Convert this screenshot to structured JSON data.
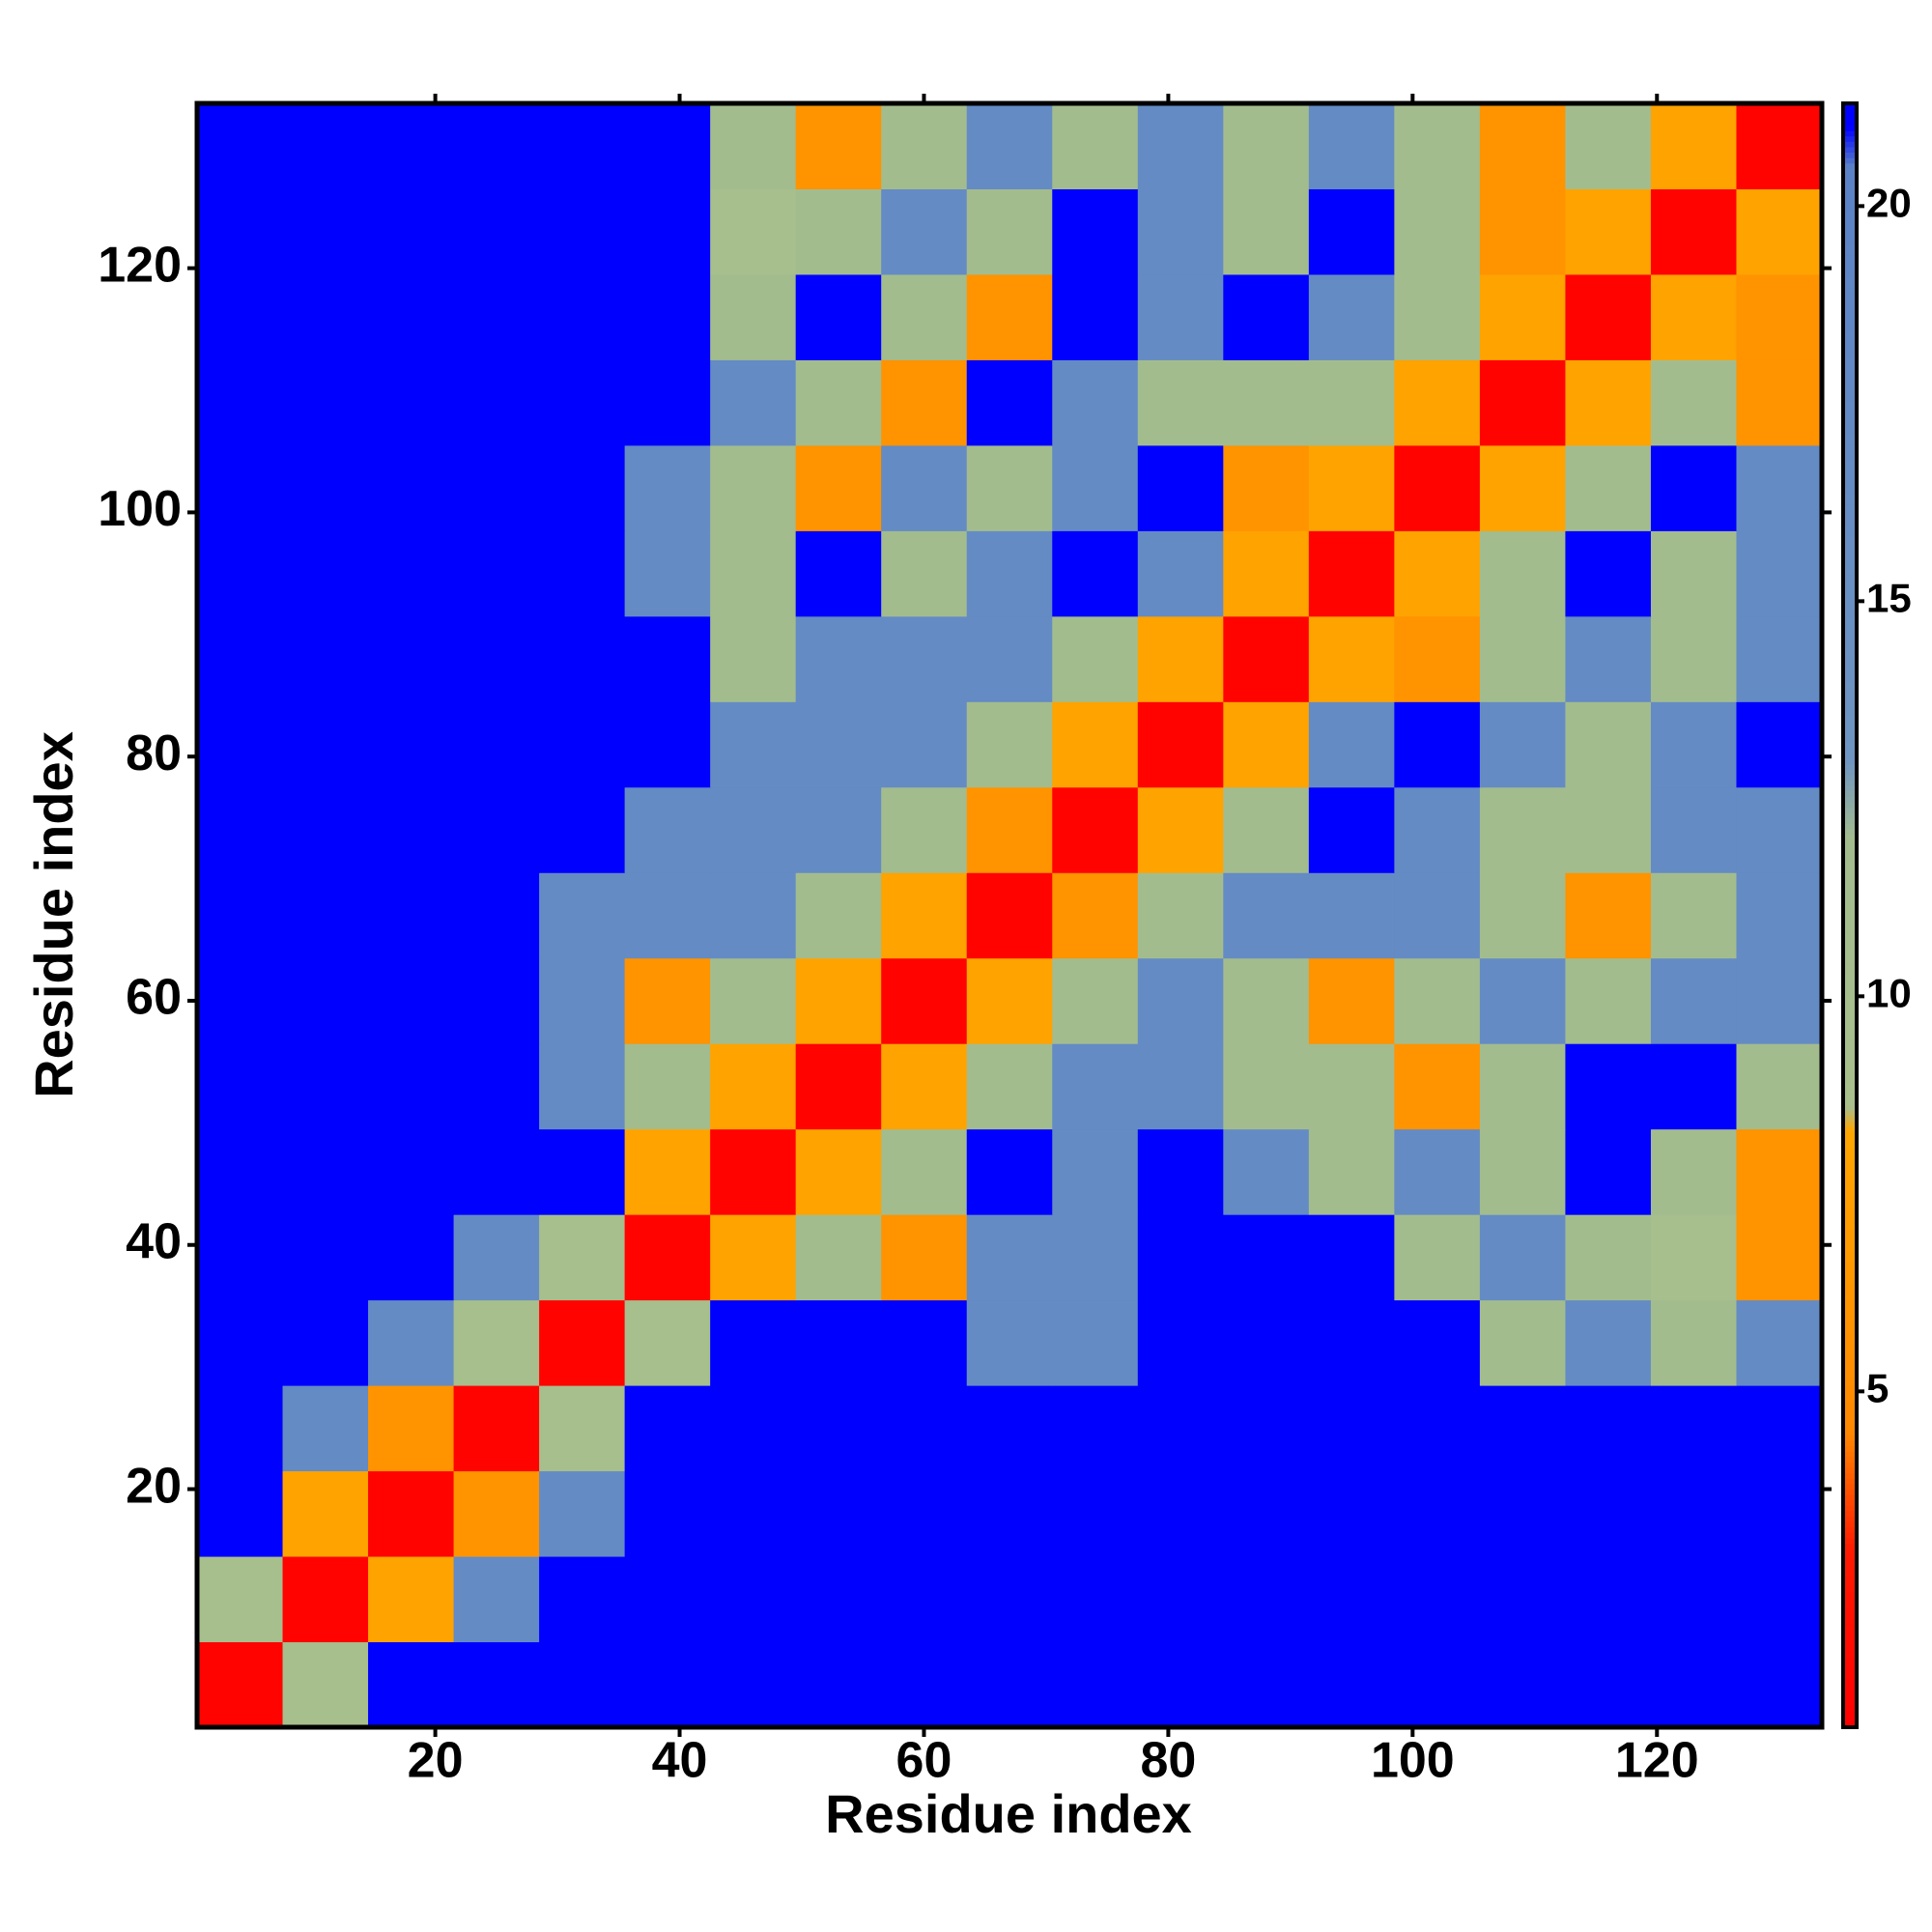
{
  "chart_data": {
    "type": "heatmap",
    "xlabel": "Residue index",
    "ylabel": "Residue index",
    "x": [
      4,
      11,
      18,
      25,
      32,
      39,
      46,
      53,
      60,
      67,
      74,
      81,
      88,
      95,
      102,
      109,
      116,
      123,
      130
    ],
    "y": [
      4,
      11,
      18,
      25,
      32,
      39,
      46,
      53,
      60,
      67,
      74,
      81,
      88,
      95,
      102,
      109,
      116,
      123,
      130
    ],
    "z": [
      [
        1,
        10,
        21,
        21,
        21,
        21,
        21,
        21,
        21,
        21,
        21,
        21,
        21,
        21,
        21,
        21,
        21,
        21,
        21
      ],
      [
        10,
        1,
        8,
        17,
        21,
        21,
        21,
        21,
        21,
        21,
        21,
        21,
        21,
        21,
        21,
        21,
        21,
        21,
        21
      ],
      [
        21,
        8,
        1,
        6,
        17,
        21,
        21,
        21,
        21,
        21,
        21,
        21,
        21,
        21,
        21,
        21,
        21,
        21,
        21
      ],
      [
        21,
        17,
        6,
        1,
        10,
        21,
        21,
        21,
        21,
        21,
        21,
        21,
        21,
        21,
        21,
        21,
        21,
        21,
        21
      ],
      [
        21,
        21,
        17,
        10,
        1,
        10,
        21,
        21,
        21,
        17,
        17,
        21,
        21,
        21,
        21,
        12,
        17,
        12,
        17
      ],
      [
        21,
        21,
        21,
        17,
        10,
        1,
        8,
        12,
        6,
        17,
        17,
        21,
        21,
        21,
        12,
        17,
        12,
        10,
        6
      ],
      [
        21,
        21,
        21,
        21,
        21,
        8,
        1,
        8,
        12,
        21,
        17,
        21,
        17,
        12,
        17,
        12,
        21,
        12,
        6
      ],
      [
        21,
        21,
        21,
        21,
        17,
        12,
        8,
        1,
        8,
        12,
        17,
        17,
        12,
        12,
        6,
        12,
        21,
        21,
        12
      ],
      [
        21,
        21,
        21,
        21,
        17,
        6,
        12,
        8,
        1,
        8,
        12,
        17,
        12,
        6,
        12,
        17,
        12,
        17,
        17
      ],
      [
        21,
        21,
        21,
        21,
        17,
        17,
        17,
        12,
        8,
        1,
        6,
        12,
        17,
        17,
        17,
        12,
        6,
        12,
        17
      ],
      [
        21,
        21,
        21,
        21,
        21,
        17,
        17,
        17,
        12,
        6,
        1,
        8,
        12,
        21,
        17,
        12,
        12,
        17,
        17
      ],
      [
        21,
        21,
        21,
        21,
        21,
        21,
        17,
        17,
        17,
        12,
        8,
        1,
        8,
        17,
        21,
        17,
        12,
        17,
        21
      ],
      [
        21,
        21,
        21,
        21,
        21,
        21,
        12,
        17,
        17,
        17,
        12,
        8,
        1,
        8,
        6,
        12,
        17,
        12,
        17
      ],
      [
        21,
        21,
        21,
        21,
        21,
        17,
        12,
        21,
        12,
        17,
        21,
        17,
        8,
        1,
        8,
        12,
        21,
        12,
        17
      ],
      [
        21,
        21,
        21,
        21,
        21,
        17,
        12,
        6,
        17,
        12,
        17,
        21,
        6,
        8,
        1,
        8,
        12,
        21,
        17
      ],
      [
        21,
        21,
        21,
        21,
        21,
        21,
        17,
        12,
        6,
        21,
        17,
        12,
        12,
        12,
        8,
        1,
        8,
        12,
        6
      ],
      [
        21,
        21,
        21,
        21,
        21,
        21,
        12,
        21,
        12,
        6,
        21,
        17,
        21,
        17,
        12,
        8,
        1,
        8,
        6
      ],
      [
        21,
        21,
        21,
        21,
        21,
        21,
        10,
        12,
        17,
        12,
        21,
        17,
        12,
        21,
        12,
        6,
        8,
        1,
        8
      ],
      [
        21,
        21,
        21,
        21,
        21,
        21,
        12,
        6,
        12,
        17,
        12,
        17,
        12,
        17,
        12,
        6,
        12,
        8,
        1
      ]
    ],
    "xlim": [
      0.5,
      133.5
    ],
    "ylim": [
      0.5,
      133.5
    ],
    "xticks": [
      20,
      40,
      60,
      80,
      100,
      120
    ],
    "yticks": [
      20,
      40,
      60,
      80,
      100,
      120
    ],
    "zlim": [
      0.75,
      21.3
    ],
    "zticks": [
      5,
      10,
      15,
      20
    ],
    "colorscale": [
      [
        0.75,
        "#ff0000"
      ],
      [
        3,
        "#ff1a00"
      ],
      [
        4.5,
        "#ff8800"
      ],
      [
        8.3,
        "#ffa500"
      ],
      [
        8.6,
        "#a9bf8c"
      ],
      [
        12,
        "#a3bc8e"
      ],
      [
        13,
        "#6f95c2"
      ],
      [
        20.5,
        "#5b82c6"
      ],
      [
        21,
        "#0000ff"
      ],
      [
        21.3,
        "#0000ff"
      ]
    ]
  }
}
